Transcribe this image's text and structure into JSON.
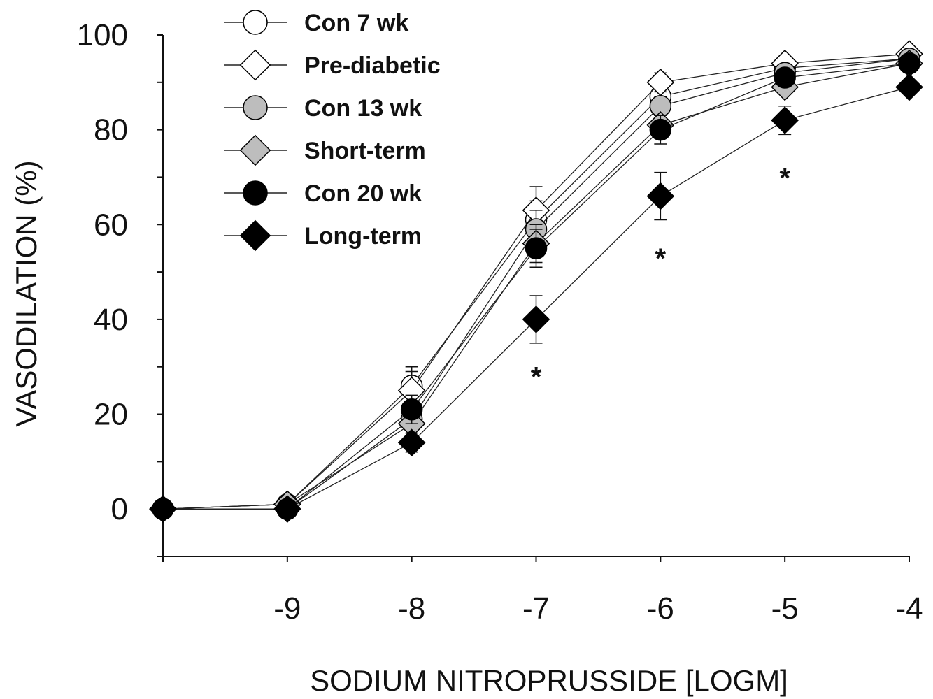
{
  "chart_data": {
    "type": "line",
    "xlabel": "SODIUM NITROPRUSSIDE [LOGM]",
    "ylabel": "VASODILATION (%)",
    "xlim": [
      -10,
      -4
    ],
    "ylim": [
      -10,
      100
    ],
    "x_ticks": [
      -9,
      -8,
      -7,
      -6,
      -5,
      -4
    ],
    "x_tick_labels": [
      "-9",
      "-8",
      "-7",
      "-6",
      "-5",
      "-4"
    ],
    "y_ticks": [
      0,
      20,
      40,
      60,
      80,
      100
    ],
    "y_tick_labels": [
      "0",
      "20",
      "40",
      "60",
      "80",
      "100"
    ],
    "x": [
      -10,
      -9,
      -8,
      -7,
      -6,
      -5,
      -4
    ],
    "legend_position": "top-left",
    "grid": false,
    "series": [
      {
        "name": "Con 7 wk",
        "marker": "circle",
        "color": "#ffffff",
        "values": [
          0,
          1,
          26,
          61,
          87,
          93,
          95
        ],
        "errors": [
          0,
          1,
          4,
          4,
          2,
          1,
          1
        ]
      },
      {
        "name": "Pre-diabetic",
        "marker": "diamond",
        "color": "#ffffff",
        "values": [
          0,
          1,
          25,
          63,
          90,
          94,
          96
        ],
        "errors": [
          0,
          1,
          4,
          5,
          2,
          1,
          1
        ]
      },
      {
        "name": "Con 13 wk",
        "marker": "circle",
        "color": "#bdbdbd",
        "values": [
          0,
          0,
          19,
          59,
          85,
          92,
          95
        ],
        "errors": [
          0,
          1,
          3,
          4,
          2,
          1,
          1
        ]
      },
      {
        "name": "Short-term",
        "marker": "diamond",
        "color": "#bdbdbd",
        "values": [
          0,
          1,
          18,
          56,
          81,
          89,
          94
        ],
        "errors": [
          0,
          1,
          3,
          4,
          2,
          1,
          1
        ]
      },
      {
        "name": "Con 20 wk",
        "marker": "circle",
        "color": "#000000",
        "values": [
          0,
          0,
          21,
          55,
          80,
          91,
          94
        ],
        "errors": [
          0,
          1,
          3,
          4,
          3,
          1,
          1
        ]
      },
      {
        "name": "Long-term",
        "marker": "diamond",
        "color": "#000000",
        "values": [
          0,
          0,
          14,
          40,
          66,
          82,
          89
        ],
        "errors": [
          0,
          1,
          2,
          5,
          5,
          3,
          1
        ]
      }
    ],
    "annotations": [
      {
        "text": "*",
        "x": -7,
        "y": 30
      },
      {
        "text": "*",
        "x": -6,
        "y": 55
      },
      {
        "text": "*",
        "x": -5,
        "y": 72
      }
    ]
  }
}
